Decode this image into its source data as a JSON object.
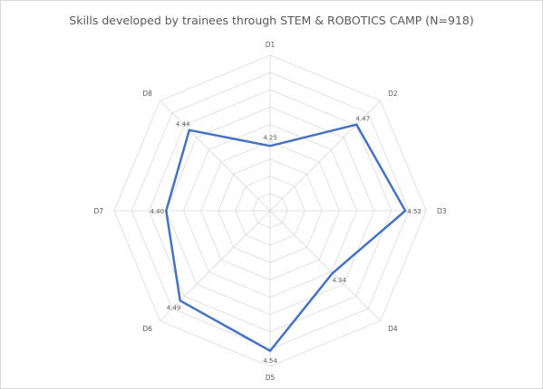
{
  "chart_data": {
    "type": "radar",
    "title": "Skills developed by trainees through STEM & ROBOTICS CAMP (N=918)",
    "categories": [
      "D1",
      "D2",
      "D3",
      "D4",
      "D5",
      "D6",
      "D7",
      "D8"
    ],
    "series": [
      {
        "values": [
          4.25,
          4.47,
          4.52,
          4.34,
          4.54,
          4.49,
          4.4,
          4.44
        ],
        "labels": [
          "4.25",
          "4.47",
          "4.52",
          "4.34",
          "4.54",
          "4.49",
          "4.40",
          "4.44"
        ],
        "color": "#4472c4"
      }
    ],
    "rlim": [
      4.0,
      4.6
    ],
    "rings": 9,
    "grid": true,
    "legend": "none"
  }
}
